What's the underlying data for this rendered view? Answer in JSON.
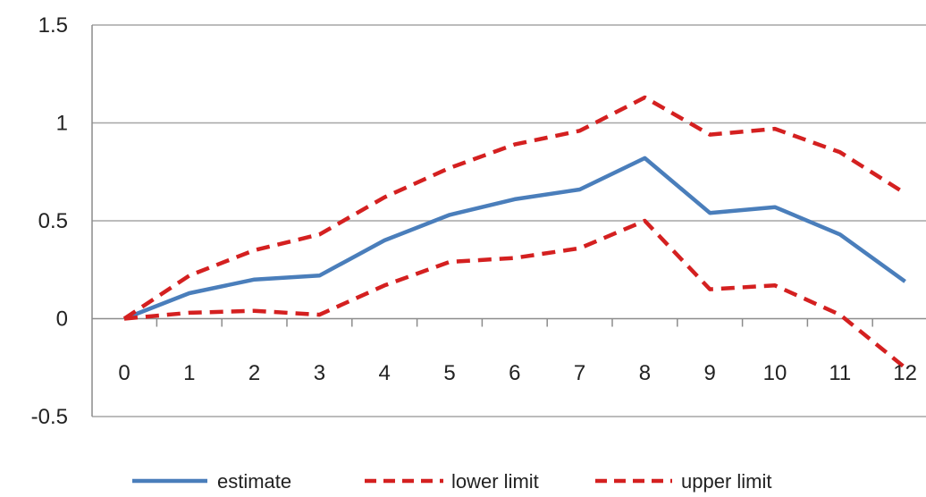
{
  "chart_data": {
    "type": "line",
    "title": "",
    "xlabel": "",
    "ylabel": "",
    "x": [
      0,
      1,
      2,
      3,
      4,
      5,
      6,
      7,
      8,
      9,
      10,
      11,
      12
    ],
    "x_tick_labels": [
      "0",
      "1",
      "2",
      "3",
      "4",
      "5",
      "6",
      "7",
      "8",
      "9",
      "10",
      "11",
      "12"
    ],
    "y_ticks": [
      -0.5,
      0,
      0.5,
      1,
      1.5
    ],
    "y_tick_labels": [
      "-0.5",
      "0",
      "0.5",
      "1",
      "1.5"
    ],
    "ylim": [
      -0.5,
      1.5
    ],
    "grid": "horizontal",
    "legend_position": "bottom",
    "series": [
      {
        "name": "estimate",
        "color": "#4a7ebb",
        "style": "solid",
        "values": [
          0,
          0.13,
          0.2,
          0.22,
          0.4,
          0.53,
          0.61,
          0.66,
          0.82,
          0.54,
          0.57,
          0.43,
          0.19
        ]
      },
      {
        "name": "lower limit",
        "color": "#d42020",
        "style": "dashed",
        "values": [
          0,
          0.03,
          0.04,
          0.02,
          0.17,
          0.29,
          0.31,
          0.36,
          0.5,
          0.15,
          0.17,
          0.02,
          -0.25
        ]
      },
      {
        "name": "upper limit",
        "color": "#d42020",
        "style": "dashed",
        "values": [
          0,
          0.22,
          0.35,
          0.43,
          0.62,
          0.77,
          0.89,
          0.96,
          1.13,
          0.94,
          0.97,
          0.85,
          0.64
        ]
      }
    ]
  }
}
